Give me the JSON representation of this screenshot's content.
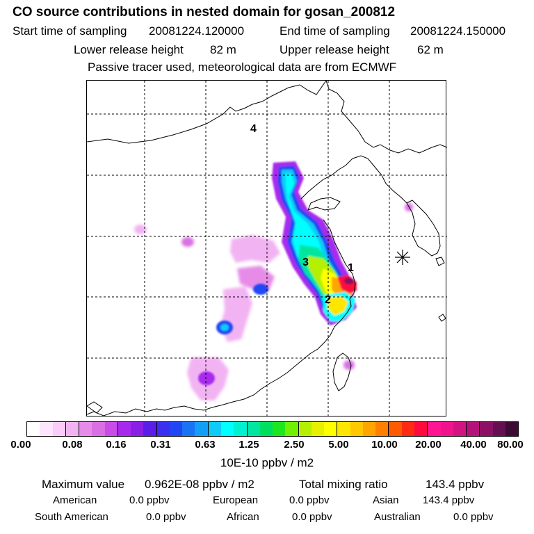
{
  "header": {
    "title": "CO  source contributions in nested domain for gosan_200812",
    "start_label": "Start time of sampling",
    "start_value": "20081224.120000",
    "end_label": "End time of sampling",
    "end_value": "20081224.150000",
    "lower_label": "Lower release height",
    "lower_value": "82 m",
    "upper_label": "Upper release height",
    "upper_value": "62 m",
    "tracer_note": "Passive tracer used, meteorological data are from ECMWF"
  },
  "map": {
    "region_labels": [
      "1",
      "2",
      "3",
      "4"
    ],
    "marker": "receptor-star"
  },
  "colorbar": {
    "tick_labels": [
      "0.00",
      "0.08",
      "0.16",
      "0.31",
      "0.63",
      "1.25",
      "2.50",
      "5.00",
      "10.00",
      "20.00",
      "40.00",
      "80.00"
    ],
    "unit": "10E-10 ppbv / m2",
    "colors": [
      "#ffffff",
      "#fde6fd",
      "#f9ccf9",
      "#f2b3f2",
      "#e68ce8",
      "#d96fe3",
      "#c84ce8",
      "#a829ee",
      "#8a1fe6",
      "#5a1ee8",
      "#3b2ff0",
      "#2147f5",
      "#1a73f5",
      "#139ff7",
      "#0ecbf7",
      "#00ffff",
      "#00f0d0",
      "#00e6a0",
      "#00de60",
      "#1ee61e",
      "#70f000",
      "#b4f000",
      "#e6f000",
      "#ffff00",
      "#ffe600",
      "#ffc800",
      "#ffa500",
      "#ff7f00",
      "#ff5a00",
      "#ff2a14",
      "#ff0a3c",
      "#ff1493",
      "#f0148c",
      "#d21482",
      "#b4127a",
      "#8c0f64",
      "#641050",
      "#3c0a32"
    ]
  },
  "stats": {
    "max_label": "Maximum value",
    "max_value": "0.962E-08 ppbv / m2",
    "total_label": "Total mixing ratio",
    "total_value": "143.4 ppbv",
    "american_label": "American",
    "american_value": "0.0 ppbv",
    "european_label": "European",
    "european_value": "0.0 ppbv",
    "asian_label": "Asian",
    "asian_value": "143.4 ppbv",
    "south_american_label": "South American",
    "south_american_value": "0.0 ppbv",
    "african_label": "African",
    "african_value": "0.0 ppbv",
    "australian_label": "Australian",
    "australian_value": "0.0 ppbv"
  }
}
